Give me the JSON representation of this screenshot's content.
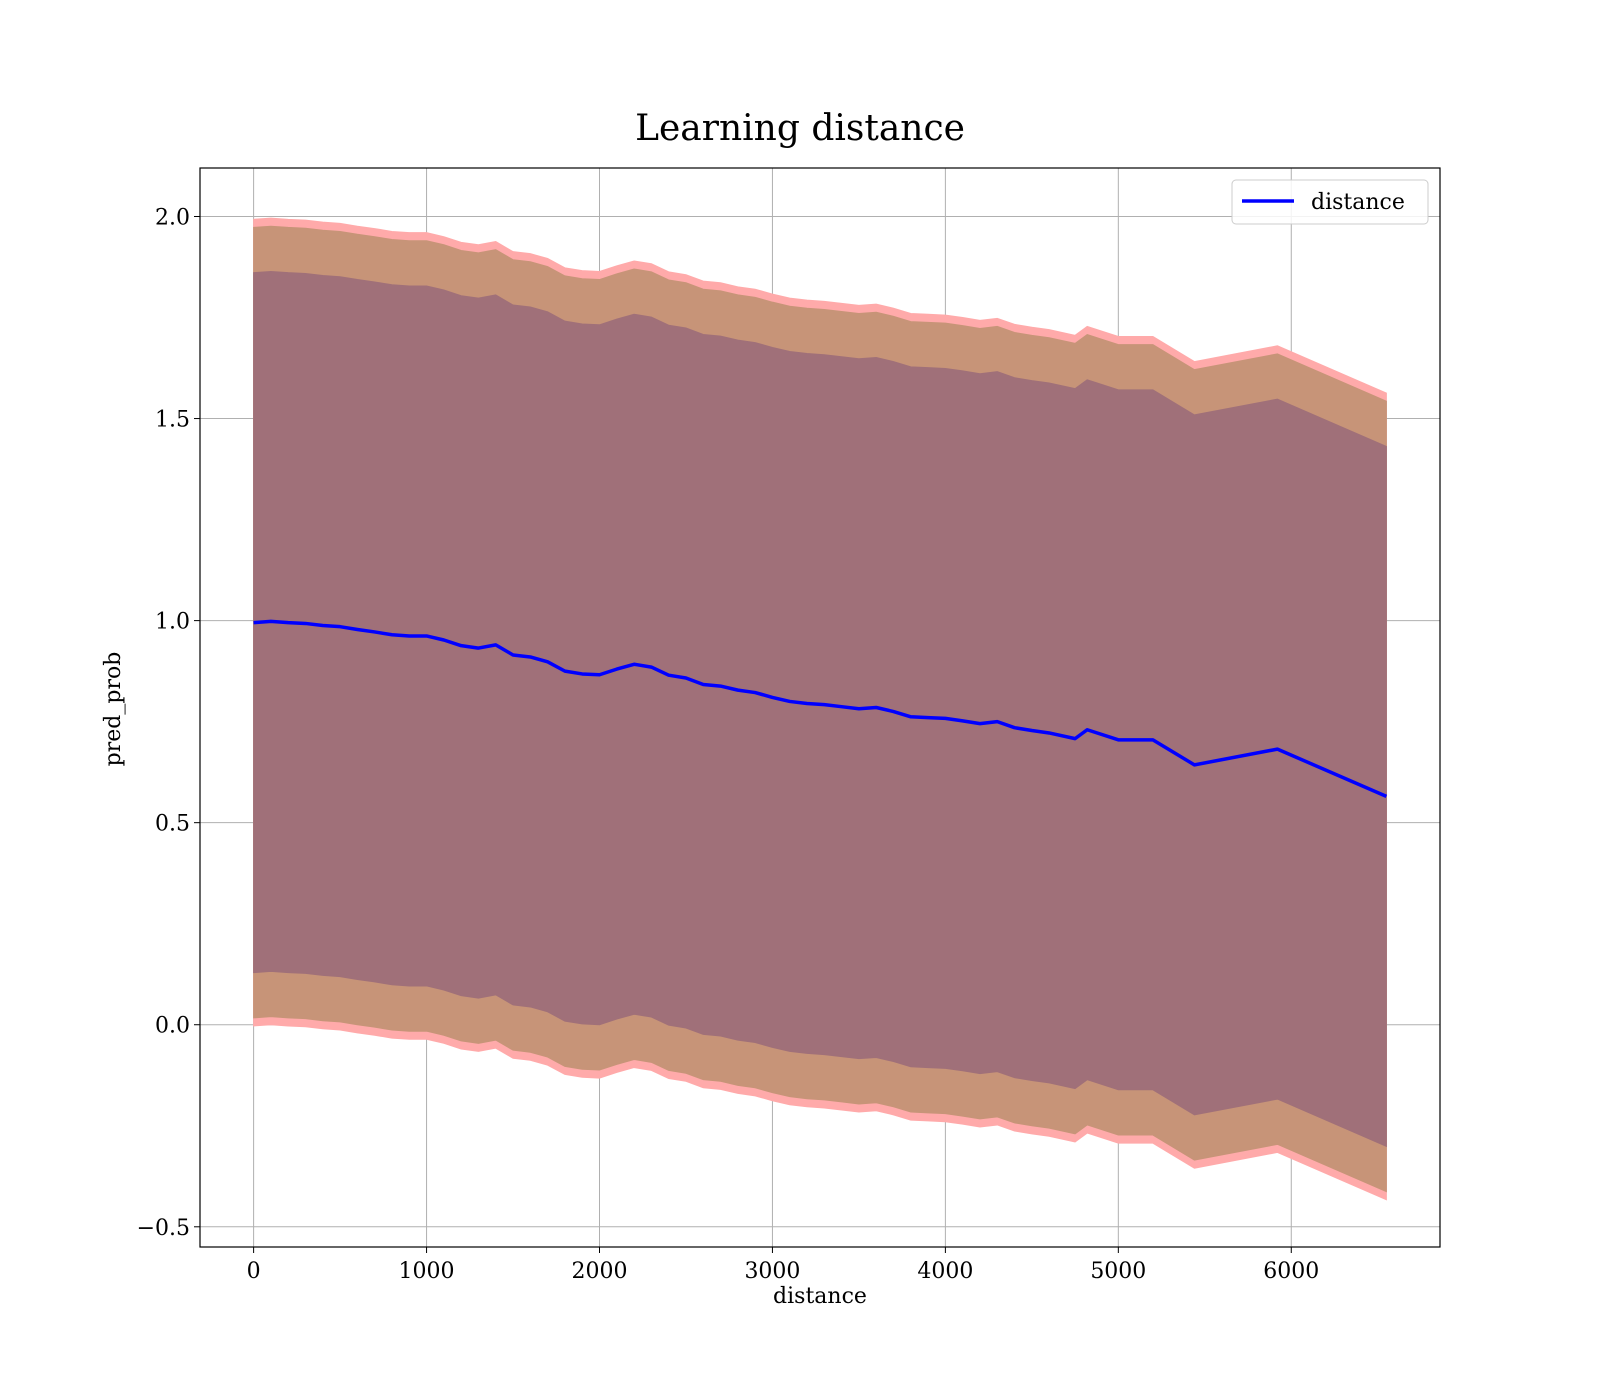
{
  "chart_data": {
    "type": "line",
    "title": "Learning distance",
    "xlabel": "distance",
    "ylabel": "pred_prob",
    "xlim": [
      -310,
      6860
    ],
    "ylim": [
      -0.55,
      2.12
    ],
    "xticks": [
      0,
      1000,
      2000,
      3000,
      4000,
      5000,
      6000
    ],
    "xtick_labels": [
      "0",
      "1000",
      "2000",
      "3000",
      "4000",
      "5000",
      "6000"
    ],
    "yticks": [
      -0.5,
      0.0,
      0.5,
      1.0,
      1.5,
      2.0
    ],
    "ytick_labels": [
      "−0.5",
      "0.0",
      "0.5",
      "1.0",
      "1.5",
      "2.0"
    ],
    "grid": true,
    "legend": {
      "position": "top-right",
      "entries": [
        "distance"
      ]
    },
    "colors": {
      "line": "#0000ff",
      "band_outer": "#ffaaaa",
      "band_middle": "#c79478",
      "band_inner": "#a07079",
      "grid": "#b0b0b0"
    },
    "x": [
      0,
      100,
      200,
      300,
      400,
      500,
      600,
      700,
      800,
      900,
      1000,
      1100,
      1200,
      1300,
      1400,
      1500,
      1600,
      1700,
      1800,
      1900,
      2000,
      2100,
      2200,
      2300,
      2400,
      2500,
      2600,
      2700,
      2800,
      2900,
      3000,
      3100,
      3200,
      3300,
      3400,
      3500,
      3600,
      3700,
      3800,
      3900,
      4000,
      4100,
      4200,
      4300,
      4400,
      4500,
      4600,
      4750,
      4820,
      5000,
      5200,
      5440,
      5920,
      6550
    ],
    "series": [
      {
        "name": "distance",
        "values": [
          0.995,
          0.998,
          0.995,
          0.993,
          0.988,
          0.985,
          0.978,
          0.972,
          0.965,
          0.962,
          0.962,
          0.952,
          0.938,
          0.932,
          0.94,
          0.915,
          0.91,
          0.898,
          0.875,
          0.868,
          0.866,
          0.88,
          0.892,
          0.885,
          0.865,
          0.858,
          0.842,
          0.838,
          0.828,
          0.822,
          0.81,
          0.8,
          0.795,
          0.792,
          0.787,
          0.782,
          0.785,
          0.775,
          0.762,
          0.76,
          0.758,
          0.752,
          0.745,
          0.75,
          0.735,
          0.728,
          0.722,
          0.708,
          0.73,
          0.705,
          0.705,
          0.643,
          0.682,
          0.565
        ]
      }
    ],
    "bands": [
      {
        "lower_offset": -0.998,
        "upper_offset": 0.998
      },
      {
        "lower_offset": -0.978,
        "upper_offset": 0.978
      },
      {
        "lower_offset": -0.866,
        "upper_offset": 0.866
      }
    ]
  }
}
